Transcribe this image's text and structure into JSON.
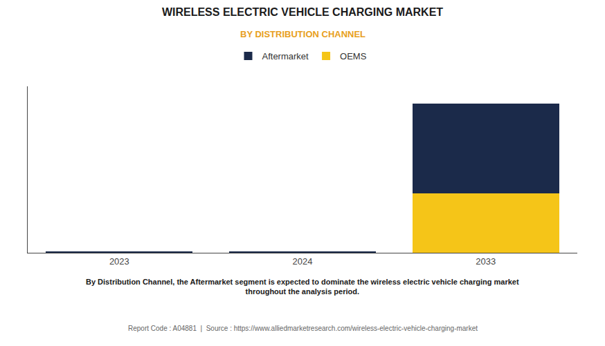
{
  "chart_data": {
    "type": "bar",
    "stacked": true,
    "title": "WIRELESS ELECTRIC VEHICLE CHARGING MARKET",
    "subtitle": "BY DISTRIBUTION CHANNEL",
    "annotations": [
      "By Distribution Channel, the Aftermarket segment is expected to dominate the wireless electric vehicle charging market\nthroughout the analysis period.",
      "Report Code : A04881  |  Source : https://www.alliedmarketresearch.com/wireless-electric-vehicle-charging-market"
    ],
    "categories": [
      "2023",
      "2024",
      "2033"
    ],
    "series": [
      {
        "name": "OEMS",
        "color": "#F5C518",
        "values": [
          0.018,
          0.028,
          5.2
        ]
      },
      {
        "name": "Aftermarket",
        "color": "#1B2A4A",
        "values": [
          0.055,
          0.075,
          7.8
        ]
      }
    ],
    "ylim": [
      0,
      14.5
    ],
    "grid": false,
    "legend": "top",
    "tick_labels": "x"
  }
}
